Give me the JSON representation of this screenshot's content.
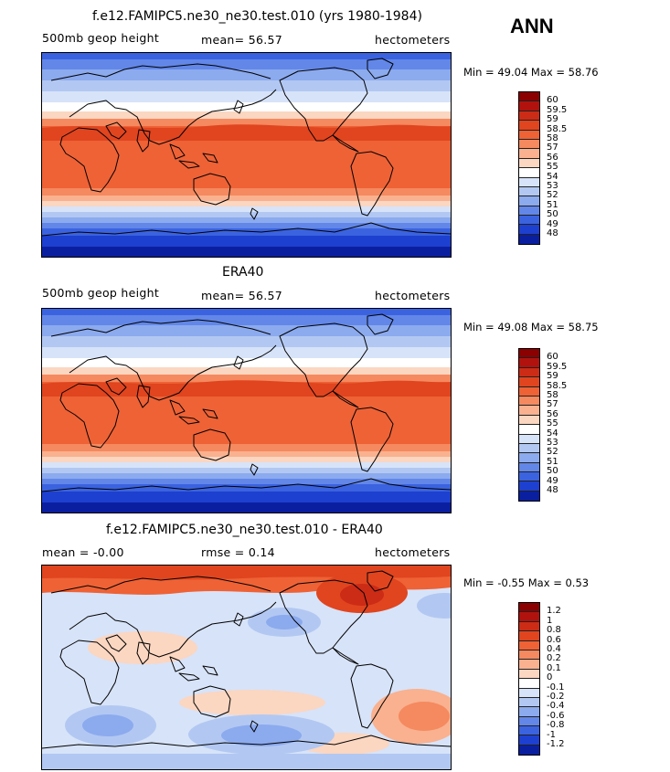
{
  "season": "ANN",
  "panels": [
    {
      "title": "f.e12.FAMIPC5.ne30_ne30.test.010 (yrs 1980-1984)",
      "left_label": "500mb geop height",
      "center_label": "mean=   56.57",
      "right_label": "hectometers",
      "minmax": "Min =   49.04  Max =   58.76",
      "colorbar_labels": [
        "60",
        "59.5",
        "59",
        "58.5",
        "58",
        "57",
        "56",
        "55",
        "54",
        "53",
        "52",
        "51",
        "50",
        "49",
        "48"
      ],
      "field_type": "absolute"
    },
    {
      "title": "ERA40",
      "left_label": "500mb geop height",
      "center_label": "mean=   56.57",
      "right_label": "hectometers",
      "minmax": "Min =   49.08  Max =   58.75",
      "colorbar_labels": [
        "60",
        "59.5",
        "59",
        "58.5",
        "58",
        "57",
        "56",
        "55",
        "54",
        "53",
        "52",
        "51",
        "50",
        "49",
        "48"
      ],
      "field_type": "absolute"
    },
    {
      "title": "f.e12.FAMIPC5.ne30_ne30.test.010 - ERA40",
      "left_label": "mean =   -0.00",
      "center_label": "rmse =    0.14",
      "right_label": "hectometers",
      "minmax": "Min =   -0.55  Max =    0.53",
      "colorbar_labels": [
        "1.2",
        "1",
        "0.8",
        "0.6",
        "0.4",
        "0.2",
        "0.1",
        "0",
        "-0.1",
        "-0.2",
        "-0.4",
        "-0.6",
        "-0.8",
        "-1",
        "-1.2"
      ],
      "field_type": "difference"
    }
  ],
  "colormap": [
    "#8b0000",
    "#b2120d",
    "#cc2b16",
    "#e0451f",
    "#ee6236",
    "#f5895f",
    "#f9b18f",
    "#fbd6c1",
    "#ffffff",
    "#d7e3f8",
    "#b2c8f2",
    "#8caaee",
    "#6287e8",
    "#3b63e0",
    "#1e40d0",
    "#0a1fa0"
  ]
}
